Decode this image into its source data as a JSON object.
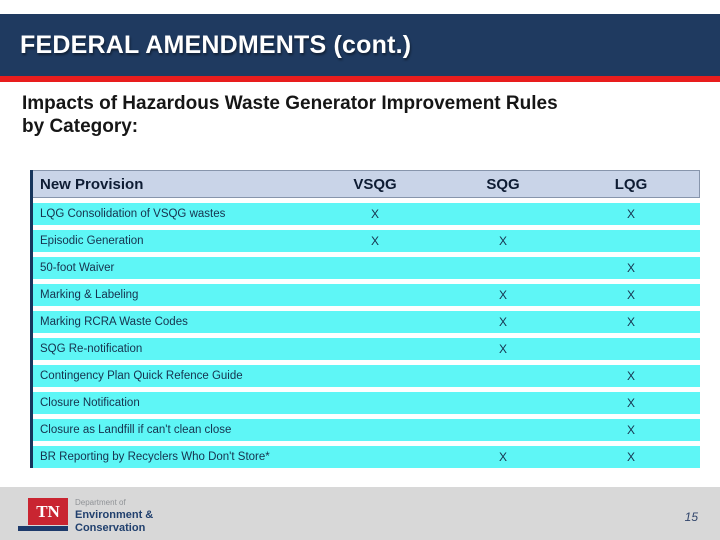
{
  "slide": {
    "title": "FEDERAL AMENDMENTS (cont.)",
    "subtitle_line1": "Impacts of Hazardous Waste Generator Improvement Rules",
    "subtitle_line2": "by Category:",
    "page_number": "15"
  },
  "table": {
    "columns": [
      "New Provision",
      "VSQG",
      "SQG",
      "LQG"
    ],
    "rows": [
      {
        "provision": "LQG Consolidation of VSQG wastes",
        "vsqg": "X",
        "sqg": "",
        "lqg": "X"
      },
      {
        "provision": "Episodic Generation",
        "vsqg": "X",
        "sqg": "X",
        "lqg": ""
      },
      {
        "provision": "50-foot Waiver",
        "vsqg": "",
        "sqg": "",
        "lqg": "X"
      },
      {
        "provision": "Marking & Labeling",
        "vsqg": "",
        "sqg": "X",
        "lqg": "X"
      },
      {
        "provision": "Marking RCRA Waste Codes",
        "vsqg": "",
        "sqg": "X",
        "lqg": "X"
      },
      {
        "provision": "SQG Re-notification",
        "vsqg": "",
        "sqg": "X",
        "lqg": ""
      },
      {
        "provision": "Contingency Plan Quick Refence Guide",
        "vsqg": "",
        "sqg": "",
        "lqg": "X"
      },
      {
        "provision": "Closure Notification",
        "vsqg": "",
        "sqg": "",
        "lqg": "X"
      },
      {
        "provision": "Closure as Landfill if can't clean close",
        "vsqg": "",
        "sqg": "",
        "lqg": "X"
      },
      {
        "provision": "BR Reporting by Recyclers Who Don't Store*",
        "vsqg": "",
        "sqg": "X",
        "lqg": "X"
      }
    ]
  },
  "footer": {
    "logo_acronym": "TN",
    "dept_line1": "Department of",
    "dept_line2": "Environment &",
    "dept_line3": "Conservation"
  },
  "colors": {
    "header_navy": "#1f3a60",
    "rule_red": "#e81d1d",
    "table_header_bg": "#c9d4e8",
    "table_border_navy": "#16355c",
    "row_cyan": "#5ef6f6",
    "tn_red": "#c92531",
    "tn_navy": "#1d3a6b"
  }
}
